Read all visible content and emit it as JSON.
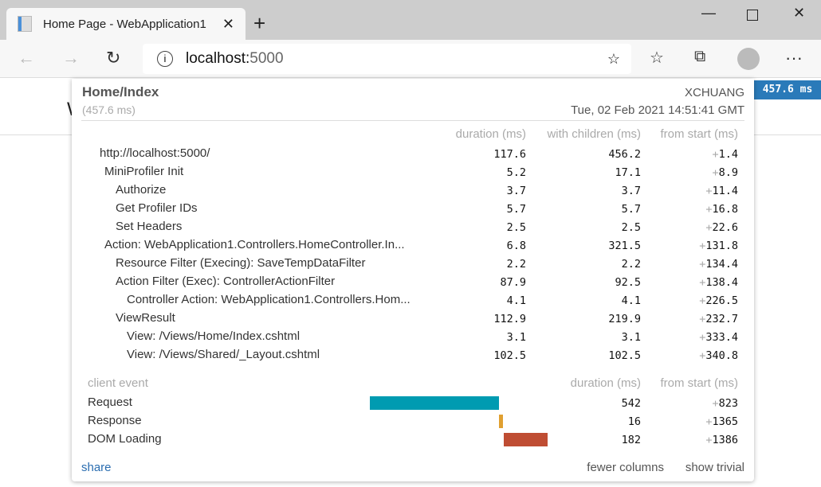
{
  "browser": {
    "tab_title": "Home Page - WebApplication1",
    "url_host": "localhost:",
    "url_port": "5000"
  },
  "page": {
    "heading_partial": "W"
  },
  "badge": "457.6 ms",
  "profiler": {
    "title": "Home/Index",
    "duration": "(457.6 ms)",
    "user": "XCHUANG",
    "date": "Tue, 02 Feb 2021 14:51:41 GMT",
    "headers": {
      "duration": "duration (ms)",
      "with_children": "with children (ms)",
      "from_start": "from start (ms)"
    },
    "timings": [
      {
        "name": "http://localhost:5000/",
        "level": 0,
        "duration": "117.6",
        "with_children": "456.2",
        "from_start": "1.4"
      },
      {
        "name": "MiniProfiler Init",
        "level": 1,
        "duration": "5.2",
        "with_children": "17.1",
        "from_start": "8.9"
      },
      {
        "name": "Authorize",
        "level": 2,
        "duration": "3.7",
        "with_children": "3.7",
        "from_start": "11.4"
      },
      {
        "name": "Get Profiler IDs",
        "level": 2,
        "duration": "5.7",
        "with_children": "5.7",
        "from_start": "16.8"
      },
      {
        "name": "Set Headers",
        "level": 2,
        "duration": "2.5",
        "with_children": "2.5",
        "from_start": "22.6"
      },
      {
        "name": "Action: WebApplication1.Controllers.HomeController.In...",
        "level": 1,
        "duration": "6.8",
        "with_children": "321.5",
        "from_start": "131.8"
      },
      {
        "name": "Resource Filter (Execing): SaveTempDataFilter",
        "level": 2,
        "duration": "2.2",
        "with_children": "2.2",
        "from_start": "134.4"
      },
      {
        "name": "Action Filter (Exec): ControllerActionFilter",
        "level": 2,
        "duration": "87.9",
        "with_children": "92.5",
        "from_start": "138.4"
      },
      {
        "name": "Controller Action: WebApplication1.Controllers.Hom...",
        "level": 3,
        "duration": "4.1",
        "with_children": "4.1",
        "from_start": "226.5"
      },
      {
        "name": "ViewResult",
        "level": 2,
        "duration": "112.9",
        "with_children": "219.9",
        "from_start": "232.7"
      },
      {
        "name": "View: /Views/Home/Index.cshtml",
        "level": 3,
        "duration": "3.1",
        "with_children": "3.1",
        "from_start": "333.4"
      },
      {
        "name": "View: /Views/Shared/_Layout.cshtml",
        "level": 3,
        "duration": "102.5",
        "with_children": "102.5",
        "from_start": "340.8"
      }
    ],
    "client_headers": {
      "event": "client event",
      "duration": "duration (ms)",
      "from_start": "from start (ms)"
    },
    "client_events": [
      {
        "name": "Request",
        "duration": "542",
        "from_start": "823",
        "color": "#009bb1"
      },
      {
        "name": "Response",
        "duration": "16",
        "from_start": "1365",
        "color": "#e0a030"
      },
      {
        "name": "DOM Loading",
        "duration": "182",
        "from_start": "1386",
        "color": "#bf4d33"
      }
    ],
    "footer": {
      "share": "share",
      "fewer_columns": "fewer columns",
      "show_trivial": "show trivial"
    }
  }
}
